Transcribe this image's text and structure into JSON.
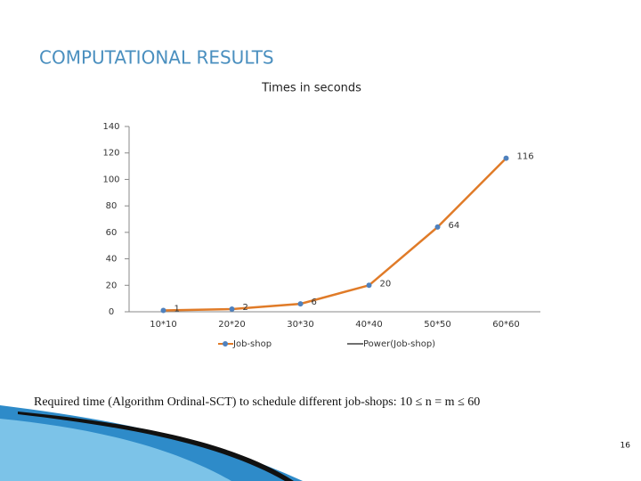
{
  "slide_title": "COMPUTATIONAL RESULTS",
  "caption": "Required time (Algorithm Ordinal-SCT) to schedule different job-shops: 10 ≤ n = m ≤ 60",
  "page_number": "16",
  "chart_data": {
    "type": "line",
    "title": "Times in seconds",
    "categories": [
      "10*10",
      "20*20",
      "30*30",
      "40*40",
      "50*50",
      "60*60"
    ],
    "series": [
      {
        "name": "Job-shop",
        "color": "#e07b28",
        "marker_color": "#4f81bd",
        "values": [
          1,
          2,
          6,
          20,
          64,
          116
        ]
      }
    ],
    "trendline": {
      "name": "Power(Job-shop)",
      "color": "#404040"
    },
    "ylim": [
      0,
      140
    ],
    "yticks": [
      0,
      20,
      40,
      60,
      80,
      100,
      120,
      140
    ],
    "data_labels": true
  }
}
